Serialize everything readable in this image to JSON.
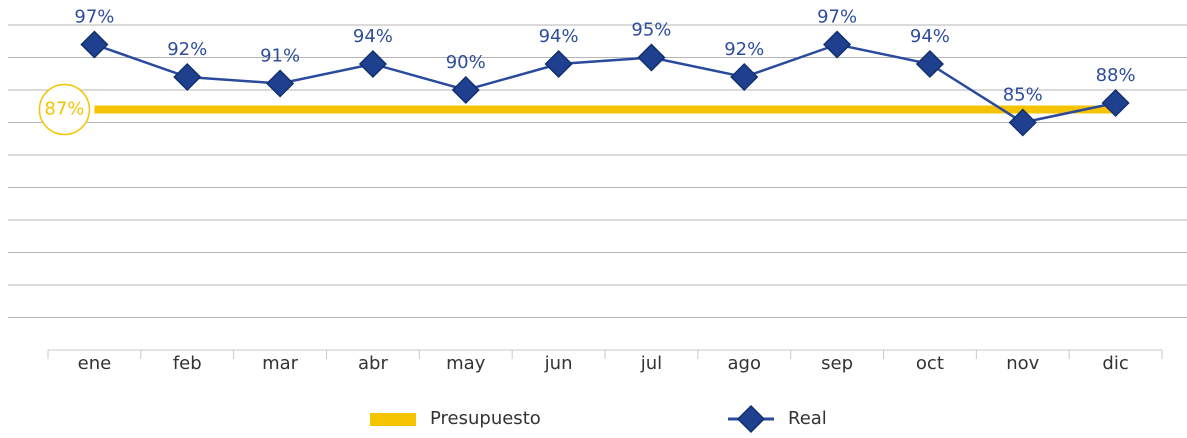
{
  "chart_data": {
    "type": "line",
    "categories": [
      "ene",
      "feb",
      "mar",
      "abr",
      "may",
      "jun",
      "jul",
      "ago",
      "sep",
      "oct",
      "nov",
      "dic"
    ],
    "series": [
      {
        "name": "Presupuesto",
        "color": "#f5c400",
        "values": [
          87,
          87,
          87,
          87,
          87,
          87,
          87,
          87,
          87,
          87,
          87,
          87
        ],
        "value_labels": [
          "87%",
          null,
          null,
          null,
          null,
          null,
          null,
          null,
          null,
          null,
          null,
          null
        ]
      },
      {
        "name": "Real",
        "color": "#1f3f8f",
        "values": [
          97,
          92,
          91,
          94,
          90,
          94,
          95,
          92,
          97,
          94,
          85,
          88
        ],
        "value_labels": [
          "97%",
          "92%",
          "91%",
          "94%",
          "90%",
          "94%",
          "95%",
          "92%",
          "97%",
          "94%",
          "85%",
          "88%"
        ]
      }
    ],
    "ylim": [
      50,
      100
    ],
    "yticks": [
      55,
      60,
      65,
      70,
      75,
      80,
      85,
      90,
      95,
      100
    ],
    "grid": true,
    "legend": "bottom"
  }
}
